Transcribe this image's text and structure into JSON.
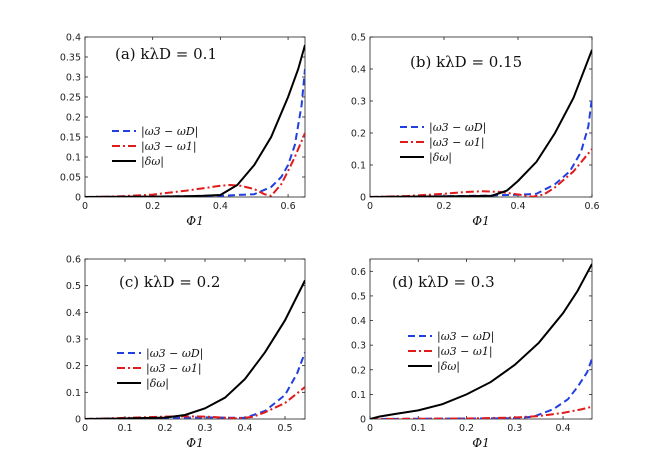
{
  "chart_data": [
    {
      "type": "line",
      "title": "(a) kλD = 0.1",
      "xlabel": "Φ1",
      "ylabel": "",
      "xlim": [
        0,
        0.65
      ],
      "ylim": [
        0,
        0.4
      ],
      "xticks": [
        0,
        0.2,
        0.4,
        0.6
      ],
      "xtick_labels": [
        "0",
        "0.2",
        "0.4",
        "0.6"
      ],
      "yticks": [
        0,
        0.05,
        0.1,
        0.15,
        0.2,
        0.25,
        0.3,
        0.35,
        0.4
      ],
      "ytick_labels": [
        "0",
        "0.05",
        "0.1",
        "0.15",
        "0.2",
        "0.25",
        "0.3",
        "0.35",
        "0.4"
      ],
      "legend_position": "center-left",
      "series": [
        {
          "name": "|ω3 − ωD|",
          "style": "dashed",
          "color": "#1f3fe0",
          "x": [
            0,
            0.1,
            0.2,
            0.3,
            0.4,
            0.5,
            0.55,
            0.58,
            0.6,
            0.62,
            0.64,
            0.65
          ],
          "y": [
            0,
            0.0005,
            0.001,
            0.002,
            0.003,
            0.007,
            0.025,
            0.05,
            0.08,
            0.13,
            0.23,
            0.32
          ]
        },
        {
          "name": "|ω3 − ω1|",
          "style": "dashdot",
          "color": "#e01b1b",
          "x": [
            0,
            0.1,
            0.2,
            0.3,
            0.35,
            0.4,
            0.43,
            0.46,
            0.5,
            0.53,
            0.55,
            0.58,
            0.6,
            0.62,
            0.65
          ],
          "y": [
            0,
            0.0015,
            0.006,
            0.016,
            0.022,
            0.028,
            0.03,
            0.028,
            0.02,
            0.007,
            0.003,
            0.032,
            0.065,
            0.1,
            0.16
          ]
        },
        {
          "name": "|δω|",
          "style": "solid",
          "color": "#000000",
          "x": [
            0,
            0.1,
            0.2,
            0.3,
            0.35,
            0.4,
            0.45,
            0.5,
            0.55,
            0.6,
            0.63,
            0.65
          ],
          "y": [
            0,
            0.0005,
            0.001,
            0.002,
            0.003,
            0.005,
            0.03,
            0.08,
            0.15,
            0.25,
            0.32,
            0.38
          ]
        }
      ]
    },
    {
      "type": "line",
      "title": "(b) kλD = 0.15",
      "xlabel": "Φ1",
      "ylabel": "",
      "xlim": [
        0,
        0.6
      ],
      "ylim": [
        0,
        0.5
      ],
      "xticks": [
        0,
        0.2,
        0.4,
        0.6
      ],
      "xtick_labels": [
        "0",
        "0.2",
        "0.4",
        "0.6"
      ],
      "yticks": [
        0,
        0.1,
        0.2,
        0.3,
        0.4,
        0.5
      ],
      "ytick_labels": [
        "0",
        "0.1",
        "0.2",
        "0.3",
        "0.4",
        "0.5"
      ],
      "legend_position": "center-left",
      "series": [
        {
          "name": "|ω3 − ωD|",
          "style": "dashed",
          "color": "#1f3fe0",
          "x": [
            0,
            0.1,
            0.2,
            0.3,
            0.4,
            0.45,
            0.5,
            0.54,
            0.57,
            0.59,
            0.6
          ],
          "y": [
            0,
            0.001,
            0.002,
            0.004,
            0.007,
            0.01,
            0.04,
            0.08,
            0.14,
            0.22,
            0.31
          ]
        },
        {
          "name": "|ω3 − ω1|",
          "style": "dashdot",
          "color": "#e01b1b",
          "x": [
            0,
            0.1,
            0.2,
            0.25,
            0.3,
            0.35,
            0.4,
            0.44,
            0.47,
            0.5,
            0.55,
            0.6
          ],
          "y": [
            0,
            0.003,
            0.01,
            0.015,
            0.018,
            0.016,
            0.008,
            0.001,
            0.008,
            0.03,
            0.08,
            0.15
          ]
        },
        {
          "name": "|δω|",
          "style": "solid",
          "color": "#000000",
          "x": [
            0,
            0.1,
            0.2,
            0.3,
            0.33,
            0.37,
            0.4,
            0.45,
            0.5,
            0.55,
            0.6
          ],
          "y": [
            0,
            0.001,
            0.002,
            0.003,
            0.004,
            0.02,
            0.05,
            0.11,
            0.2,
            0.31,
            0.46
          ]
        }
      ]
    },
    {
      "type": "line",
      "title": "(c) kλD = 0.2",
      "xlabel": "Φ1",
      "ylabel": "",
      "xlim": [
        0,
        0.55
      ],
      "ylim": [
        0,
        0.6
      ],
      "xticks": [
        0,
        0.1,
        0.2,
        0.3,
        0.4,
        0.5
      ],
      "xtick_labels": [
        "0",
        "0.1",
        "0.2",
        "0.3",
        "0.4",
        "0.5"
      ],
      "yticks": [
        0,
        0.1,
        0.2,
        0.3,
        0.4,
        0.5,
        0.6
      ],
      "ytick_labels": [
        "0",
        "0.1",
        "0.2",
        "0.3",
        "0.4",
        "0.5",
        "0.6"
      ],
      "legend_position": "center-right",
      "series": [
        {
          "name": "|ω3 − ωD|",
          "style": "dashed",
          "color": "#1f3fe0",
          "x": [
            0,
            0.1,
            0.2,
            0.3,
            0.35,
            0.4,
            0.45,
            0.5,
            0.53,
            0.55
          ],
          "y": [
            0,
            0.002,
            0.004,
            0.006,
            0.005,
            0.004,
            0.03,
            0.09,
            0.17,
            0.25
          ]
        },
        {
          "name": "|ω3 − ω1|",
          "style": "dashdot",
          "color": "#e01b1b",
          "x": [
            0,
            0.1,
            0.2,
            0.25,
            0.3,
            0.35,
            0.38,
            0.42,
            0.45,
            0.5,
            0.55
          ],
          "y": [
            0,
            0.004,
            0.009,
            0.01,
            0.009,
            0.005,
            0.002,
            0.008,
            0.025,
            0.06,
            0.12
          ]
        },
        {
          "name": "|δω|",
          "style": "solid",
          "color": "#000000",
          "x": [
            0,
            0.1,
            0.2,
            0.25,
            0.3,
            0.35,
            0.4,
            0.45,
            0.5,
            0.55
          ],
          "y": [
            0,
            0.002,
            0.005,
            0.015,
            0.04,
            0.08,
            0.15,
            0.25,
            0.37,
            0.52
          ]
        }
      ]
    },
    {
      "type": "line",
      "title": "(d) kλD = 0.3",
      "xlabel": "Φ1",
      "ylabel": "",
      "xlim": [
        0,
        0.46
      ],
      "ylim": [
        0,
        0.65
      ],
      "xticks": [
        0,
        0.1,
        0.2,
        0.3,
        0.4
      ],
      "xtick_labels": [
        "0",
        "0.1",
        "0.2",
        "0.3",
        "0.4"
      ],
      "yticks": [
        0,
        0.1,
        0.2,
        0.3,
        0.4,
        0.5,
        0.6
      ],
      "ytick_labels": [
        "0",
        "0.1",
        "0.2",
        "0.3",
        "0.4",
        "0.5",
        "0.6"
      ],
      "legend_position": "center-left",
      "series": [
        {
          "name": "|ω3 − ωD|",
          "style": "dashed",
          "color": "#1f3fe0",
          "x": [
            0,
            0.1,
            0.2,
            0.3,
            0.34,
            0.38,
            0.41,
            0.43,
            0.45,
            0.46
          ],
          "y": [
            0,
            0.001,
            0.002,
            0.003,
            0.01,
            0.04,
            0.08,
            0.13,
            0.19,
            0.245
          ]
        },
        {
          "name": "|ω3 − ω1|",
          "style": "dashdot",
          "color": "#e01b1b",
          "x": [
            0,
            0.1,
            0.2,
            0.3,
            0.35,
            0.4,
            0.44,
            0.46
          ],
          "y": [
            0,
            0.001,
            0.002,
            0.006,
            0.012,
            0.025,
            0.04,
            0.05
          ]
        },
        {
          "name": "|δω|",
          "style": "solid",
          "color": "#000000",
          "x": [
            0,
            0.02,
            0.05,
            0.1,
            0.15,
            0.2,
            0.25,
            0.3,
            0.35,
            0.4,
            0.43,
            0.46
          ],
          "y": [
            0,
            0.01,
            0.02,
            0.035,
            0.06,
            0.1,
            0.15,
            0.22,
            0.31,
            0.43,
            0.52,
            0.63
          ]
        }
      ]
    }
  ]
}
